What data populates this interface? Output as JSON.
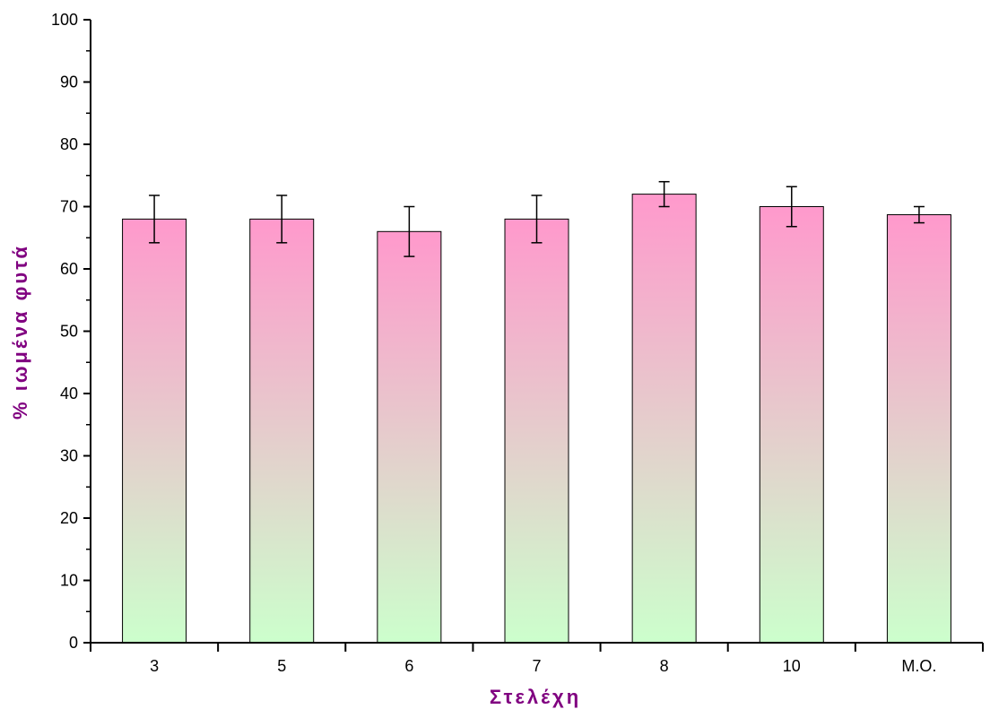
{
  "chart_data": {
    "type": "bar",
    "title": "",
    "xlabel": "Στελέχη",
    "ylabel": "% ιωμένα φυτά",
    "categories": [
      "3",
      "5",
      "6",
      "7",
      "8",
      "10",
      "M.O."
    ],
    "series": [
      {
        "values": [
          68,
          68,
          66,
          68,
          72,
          70,
          68.7
        ],
        "error": [
          3.8,
          3.8,
          4.0,
          3.8,
          2.0,
          3.2,
          1.3
        ]
      }
    ],
    "ylim": [
      0,
      100
    ],
    "yticks": [
      0,
      10,
      20,
      30,
      40,
      50,
      60,
      70,
      80,
      90,
      100
    ],
    "grid": false,
    "legend": "none",
    "colors": {
      "bar_top": "#ff99cc",
      "bar_bottom": "#ccffcc",
      "axis_title": "#800080",
      "axis": "#000000"
    }
  }
}
